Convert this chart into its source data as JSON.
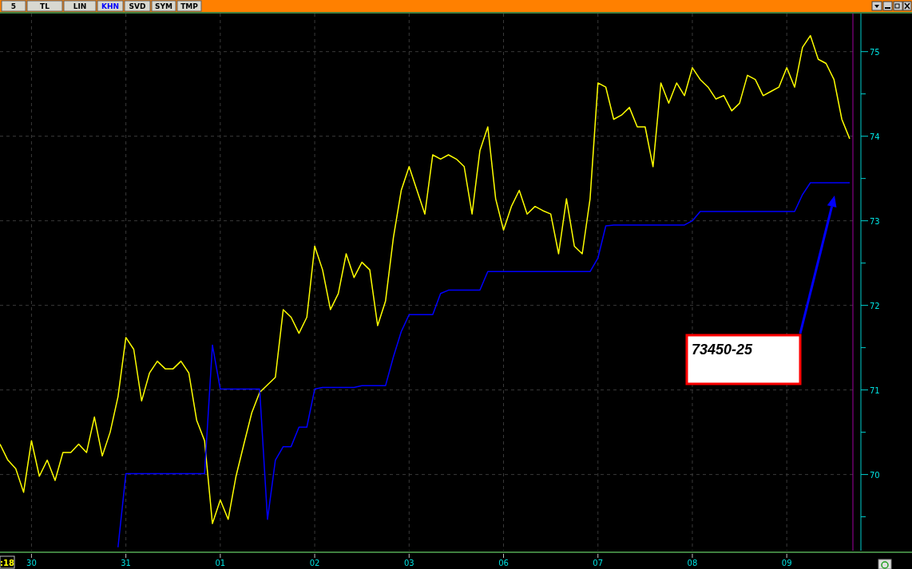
{
  "chart_data": {
    "type": "line",
    "ylim": [
      69.1,
      75.45
    ],
    "categories": [
      null,
      null,
      null,
      null,
      "30",
      null,
      null,
      null,
      null,
      null,
      null,
      null,
      null,
      null,
      null,
      null,
      "31",
      null,
      null,
      null,
      null,
      null,
      null,
      null,
      null,
      null,
      null,
      null,
      "01",
      null,
      null,
      null,
      null,
      null,
      null,
      null,
      null,
      null,
      null,
      null,
      "02",
      null,
      null,
      null,
      null,
      null,
      null,
      null,
      null,
      null,
      null,
      null,
      "03",
      null,
      null,
      null,
      null,
      null,
      null,
      null,
      null,
      null,
      null,
      null,
      "06",
      null,
      null,
      null,
      null,
      null,
      null,
      null,
      null,
      null,
      null,
      null,
      "07",
      null,
      null,
      null,
      null,
      null,
      null,
      null,
      null,
      null,
      null,
      null,
      "08",
      null,
      null,
      null,
      null,
      null,
      null,
      null,
      null,
      null,
      null,
      null,
      "09",
      null,
      null,
      null,
      null,
      null,
      null,
      null,
      null
    ],
    "yticks": [
      {
        "value": 69.5,
        "label": null
      },
      70,
      {
        "value": 70.5,
        "label": null
      },
      71,
      {
        "value": 71.5,
        "label": null
      },
      72,
      {
        "value": 72.5,
        "label": null
      },
      73,
      {
        "value": 73.5,
        "label": null
      },
      74,
      {
        "value": 74.5,
        "label": null
      },
      75
    ],
    "grid": true,
    "marker": "none",
    "line_style": "solid",
    "series": [
      {
        "color": "#ffff00",
        "values": [
          70.36,
          70.17,
          70.07,
          69.79,
          70.4,
          69.98,
          70.17,
          69.93,
          70.26,
          70.26,
          70.36,
          70.26,
          70.68,
          70.22,
          70.5,
          70.92,
          71.62,
          71.48,
          70.87,
          71.2,
          71.34,
          71.25,
          71.25,
          71.34,
          71.2,
          70.64,
          70.4,
          69.42,
          69.7,
          69.47,
          69.98,
          70.36,
          70.73,
          70.97,
          71.06,
          71.15,
          71.95,
          71.86,
          71.67,
          71.86,
          72.7,
          72.42,
          71.95,
          72.14,
          72.61,
          72.33,
          72.51,
          72.42,
          71.76,
          72.05,
          72.8,
          73.36,
          73.64,
          73.36,
          73.08,
          73.78,
          73.73,
          73.78,
          73.73,
          73.64,
          73.08,
          73.83,
          74.11,
          73.26,
          72.89,
          73.17,
          73.36,
          73.08,
          73.17,
          73.12,
          73.08,
          72.61,
          73.26,
          72.7,
          72.61,
          73.26,
          74.63,
          74.58,
          74.2,
          74.25,
          74.34,
          74.11,
          74.11,
          73.64,
          74.63,
          74.39,
          74.63,
          74.48,
          74.81,
          74.67,
          74.58,
          74.44,
          74.48,
          74.3,
          74.39,
          74.72,
          74.67,
          74.48,
          74.53,
          74.58,
          74.81,
          74.58,
          75.05,
          75.19,
          74.91,
          74.86,
          74.67,
          74.2,
          73.97
        ]
      },
      {
        "color": "#0000ff",
        "values": [
          null,
          null,
          null,
          null,
          null,
          null,
          null,
          null,
          null,
          null,
          null,
          null,
          null,
          null,
          null,
          69.14,
          70.01,
          70.01,
          70.01,
          70.01,
          70.01,
          70.01,
          70.01,
          70.01,
          70.01,
          70.01,
          70.01,
          71.53,
          71.01,
          71.01,
          71.01,
          71.01,
          71.01,
          71.01,
          69.47,
          70.17,
          70.33,
          70.33,
          70.56,
          70.56,
          71.01,
          71.03,
          71.03,
          71.03,
          71.03,
          71.03,
          71.05,
          71.05,
          71.05,
          71.05,
          71.39,
          71.69,
          71.89,
          71.89,
          71.89,
          71.89,
          72.14,
          72.18,
          72.18,
          72.18,
          72.18,
          72.18,
          72.4,
          72.4,
          72.4,
          72.4,
          72.4,
          72.4,
          72.4,
          72.4,
          72.4,
          72.4,
          72.4,
          72.4,
          72.4,
          72.4,
          72.56,
          72.94,
          72.95,
          72.95,
          72.95,
          72.95,
          72.95,
          72.95,
          72.95,
          72.95,
          72.95,
          72.95,
          73.0,
          73.11,
          73.11,
          73.11,
          73.11,
          73.11,
          73.11,
          73.11,
          73.11,
          73.11,
          73.11,
          73.11,
          73.11,
          73.11,
          73.31,
          73.45,
          73.45,
          73.45,
          73.45,
          73.45,
          73.45
        ]
      }
    ],
    "annotations": [
      "73450-25",
      "5",
      "TL",
      "LIN",
      "KHN",
      "SVD",
      "SYM",
      "TMP",
      ":18"
    ]
  }
}
